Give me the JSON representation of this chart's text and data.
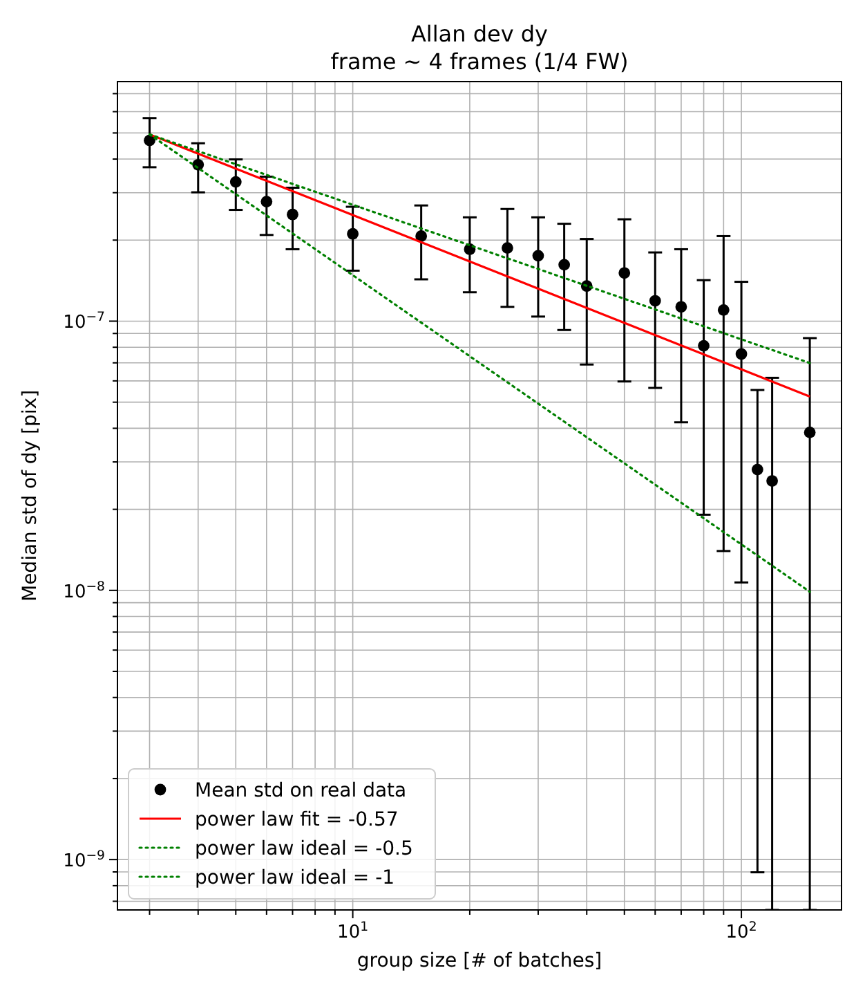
{
  "chart_data": {
    "type": "scatter",
    "title": "Allan dev dy",
    "subtitle": "frame ~ 4 frames (1/4 FW)",
    "xlabel": "group size [# of batches]",
    "ylabel": "Median std of dy [pix]",
    "log": "xy",
    "grid": true,
    "legend": "bottom left",
    "xlim": [
      2.48,
      181
    ],
    "ylim": [
      6.5e-10,
      7.76e-07
    ],
    "xticks": [
      {
        "value": 3,
        "label": null
      },
      {
        "value": 4,
        "label": null
      },
      {
        "value": 5,
        "label": null
      },
      {
        "value": 6,
        "label": null
      },
      {
        "value": 7,
        "label": null
      },
      {
        "value": 8,
        "label": null
      },
      {
        "value": 9,
        "label": null
      },
      {
        "value": 10,
        "label": "10$^{1}$"
      },
      {
        "value": 20,
        "label": null
      },
      {
        "value": 30,
        "label": null
      },
      {
        "value": 40,
        "label": null
      },
      {
        "value": 50,
        "label": null
      },
      {
        "value": 60,
        "label": null
      },
      {
        "value": 70,
        "label": null
      },
      {
        "value": 80,
        "label": null
      },
      {
        "value": 90,
        "label": null
      },
      {
        "value": 100,
        "label": "10$^{2}$"
      }
    ],
    "yticks": [
      {
        "value": 7e-10,
        "label": null
      },
      {
        "value": 8e-10,
        "label": null
      },
      {
        "value": 9e-10,
        "label": null
      },
      {
        "value": 1e-09,
        "label": "10$^{−9}$"
      },
      {
        "value": 2e-09,
        "label": null
      },
      {
        "value": 3e-09,
        "label": null
      },
      {
        "value": 4e-09,
        "label": null
      },
      {
        "value": 5e-09,
        "label": null
      },
      {
        "value": 6e-09,
        "label": null
      },
      {
        "value": 7e-09,
        "label": null
      },
      {
        "value": 8e-09,
        "label": null
      },
      {
        "value": 9e-09,
        "label": null
      },
      {
        "value": 1e-08,
        "label": "10$^{−8}$"
      },
      {
        "value": 2e-08,
        "label": null
      },
      {
        "value": 3e-08,
        "label": null
      },
      {
        "value": 4e-08,
        "label": null
      },
      {
        "value": 5e-08,
        "label": null
      },
      {
        "value": 6e-08,
        "label": null
      },
      {
        "value": 7e-08,
        "label": null
      },
      {
        "value": 8e-08,
        "label": null
      },
      {
        "value": 9e-08,
        "label": null
      },
      {
        "value": 1e-07,
        "label": "10$^{−7}$"
      },
      {
        "value": 2e-07,
        "label": null
      },
      {
        "value": 3e-07,
        "label": null
      },
      {
        "value": 4e-07,
        "label": null
      },
      {
        "value": 5e-07,
        "label": null
      },
      {
        "value": 6e-07,
        "label": null
      },
      {
        "value": 7e-07,
        "label": null
      }
    ],
    "series": [
      {
        "name": "Mean std on real data",
        "color": "#000000",
        "marker": "circle",
        "x": [
          3,
          4,
          5,
          6,
          7,
          10,
          15,
          20,
          25,
          30,
          35,
          40,
          50,
          60,
          70,
          80,
          90,
          100,
          110,
          120,
          150
        ],
        "values": [
          4.69e-07,
          3.81e-07,
          3.29e-07,
          2.78e-07,
          2.49e-07,
          2.11e-07,
          2.07e-07,
          1.85e-07,
          1.87e-07,
          1.75e-07,
          1.62e-07,
          1.35e-07,
          1.51e-07,
          1.19e-07,
          1.13e-07,
          8.1e-08,
          1.1e-07,
          7.55e-08,
          2.81e-08,
          2.55e-08,
          3.86e-08
        ],
        "errors": [
          [
            3.73e-07,
            5.68e-07
          ],
          [
            3.01e-07,
            4.58e-07
          ],
          [
            2.59e-07,
            3.99e-07
          ],
          [
            2.09e-07,
            3.44e-07
          ],
          [
            1.85e-07,
            3.13e-07
          ],
          [
            1.54e-07,
            2.66e-07
          ],
          [
            1.43e-07,
            2.69e-07
          ],
          [
            1.28e-07,
            2.43e-07
          ],
          [
            1.13e-07,
            2.61e-07
          ],
          [
            1.04e-07,
            2.43e-07
          ],
          [
            9.27e-08,
            2.3e-07
          ],
          [
            6.9e-08,
            2.02e-07
          ],
          [
            5.97e-08,
            2.39e-07
          ],
          [
            5.65e-08,
            1.8e-07
          ],
          [
            4.21e-08,
            1.85e-07
          ],
          [
            1.91e-08,
            1.42e-07
          ],
          [
            1.4e-08,
            2.07e-07
          ],
          [
            1.07e-08,
            1.4e-07
          ],
          [
            8.97e-10,
            5.55e-08
          ],
          [
            6.5e-10,
            6.16e-08
          ],
          [
            6.5e-10,
            8.65e-08
          ]
        ]
      },
      {
        "name": "power law fit = -0.57",
        "type": "line",
        "color": "#ff0000",
        "line_style": "solid",
        "marker": "none",
        "x": [
          3,
          150
        ],
        "values": [
          4.94e-07,
          5.25e-08
        ]
      },
      {
        "name": "power law ideal = -0.5",
        "type": "line",
        "color": "#008000",
        "line_style": "dotted",
        "marker": "none",
        "x": [
          3,
          150
        ],
        "values": [
          4.94e-07,
          6.99e-08
        ]
      },
      {
        "name": "power law ideal = -1",
        "type": "line",
        "color": "#008000",
        "line_style": "dotted",
        "marker": "none",
        "x": [
          3,
          150
        ],
        "values": [
          4.94e-07,
          9.88e-09
        ]
      }
    ]
  }
}
